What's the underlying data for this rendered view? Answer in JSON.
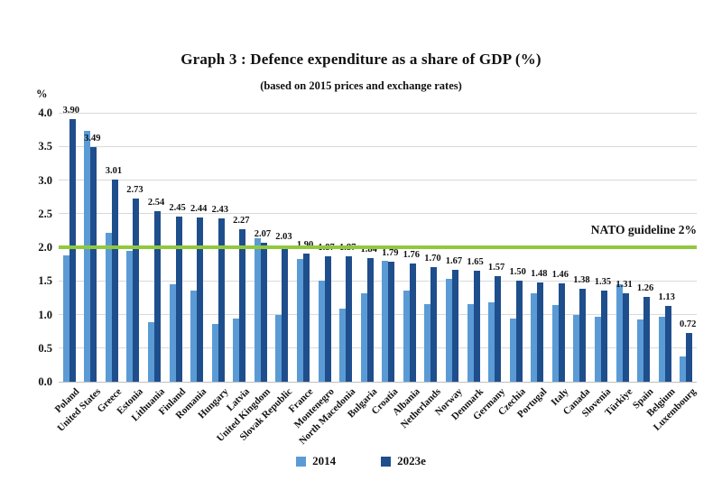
{
  "title": "Graph 3 : Defence expenditure as a share of GDP (%)",
  "subtitle": "(based on 2015 prices and exchange rates)",
  "y_axis_unit": "%",
  "chart_data": {
    "type": "bar",
    "title": "Graph 3 : Defence expenditure as a share of GDP (%)",
    "subtitle": "(based on 2015 prices and exchange rates)",
    "ylabel": "%",
    "ylim": [
      0,
      4.0
    ],
    "ytick_step": 0.5,
    "grid": true,
    "legend_position": "bottom",
    "data_labels_series": "2023e",
    "categories": [
      "Poland",
      "United States",
      "Greece",
      "Estonia",
      "Lithuania",
      "Finland",
      "Romania",
      "Hungary",
      "Latvia",
      "United Kingdom",
      "Slovak Republic",
      "France",
      "Montenegro",
      "North Macedonia",
      "Bulgaria",
      "Croatia",
      "Albania",
      "Netherlands",
      "Norway",
      "Denmark",
      "Germany",
      "Czechia",
      "Portugal",
      "Italy",
      "Canada",
      "Slovenia",
      "Türkiye",
      "Spain",
      "Belgium",
      "Luxembourg"
    ],
    "series": [
      {
        "name": "2014",
        "color": "#5B9BD5",
        "values": [
          1.88,
          3.73,
          2.22,
          1.94,
          0.88,
          1.45,
          1.35,
          0.86,
          0.94,
          2.14,
          0.99,
          1.82,
          1.5,
          1.09,
          1.31,
          1.8,
          1.35,
          1.15,
          1.53,
          1.16,
          1.18,
          0.94,
          1.31,
          1.14,
          1.0,
          0.97,
          1.45,
          0.92,
          0.97,
          0.38
        ]
      },
      {
        "name": "2023e",
        "color": "#1F4E8C",
        "values": [
          3.9,
          3.49,
          3.01,
          2.73,
          2.54,
          2.45,
          2.44,
          2.43,
          2.27,
          2.07,
          2.03,
          1.9,
          1.87,
          1.87,
          1.84,
          1.79,
          1.76,
          1.7,
          1.67,
          1.65,
          1.57,
          1.5,
          1.48,
          1.46,
          1.38,
          1.35,
          1.31,
          1.26,
          1.13,
          0.72
        ]
      }
    ],
    "reference_line": {
      "value": 2.0,
      "label": "NATO guideline 2%",
      "color": "#92C83D"
    },
    "colors": {
      "gridline": "#D9D9D9",
      "baseline": "#BFBFBF",
      "text": "#111111"
    }
  }
}
